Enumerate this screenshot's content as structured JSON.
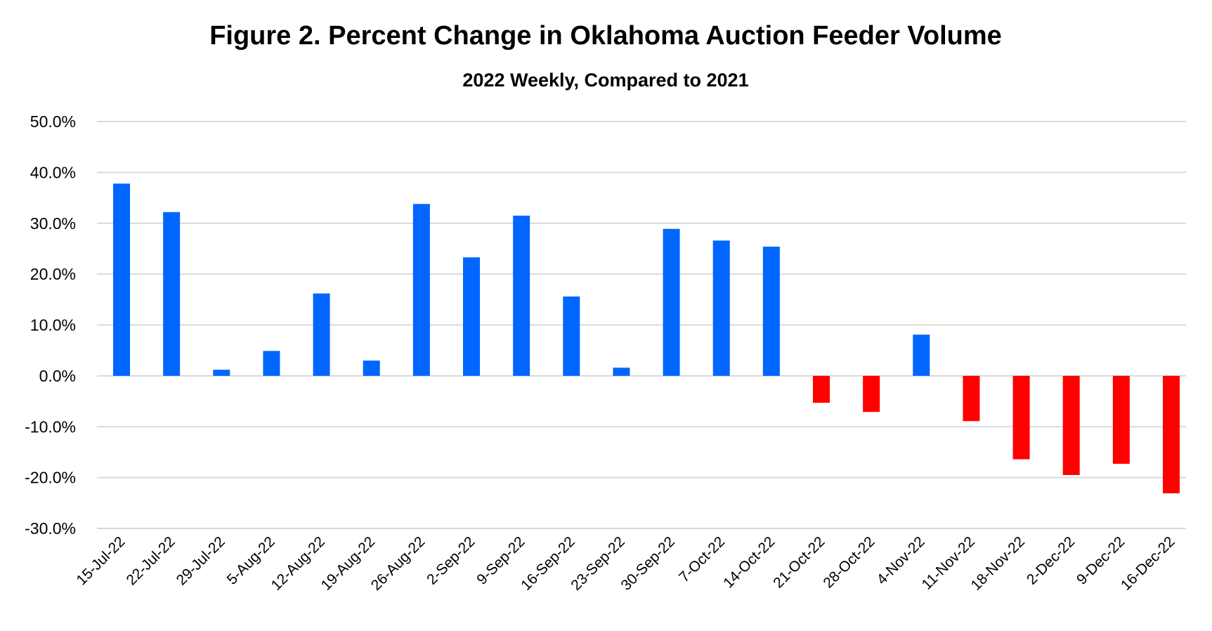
{
  "chart_data": {
    "type": "bar",
    "title": "Figure 2.  Percent Change in Oklahoma Auction Feeder Volume",
    "subtitle": "2022 Weekly, Compared to 2021",
    "xlabel": "",
    "ylabel": "",
    "ylim": [
      -30,
      50
    ],
    "yticks": [
      50,
      40,
      30,
      20,
      10,
      0,
      -10,
      -20,
      -30
    ],
    "ytick_labels": [
      "50.0%",
      "40.0%",
      "30.0%",
      "20.0%",
      "10.0%",
      "0.0%",
      "-10.0%",
      "-20.0%",
      "-30.0%"
    ],
    "grid": true,
    "legend": "none",
    "colors": {
      "positive": "#0066ff",
      "negative": "#ff0000",
      "grid": "#d9d9d9"
    },
    "categories": [
      "15-Jul-22",
      "22-Jul-22",
      "29-Jul-22",
      "5-Aug-22",
      "12-Aug-22",
      "19-Aug-22",
      "26-Aug-22",
      "2-Sep-22",
      "9-Sep-22",
      "16-Sep-22",
      "23-Sep-22",
      "30-Sep-22",
      "7-Oct-22",
      "14-Oct-22",
      "21-Oct-22",
      "28-Oct-22",
      "4-Nov-22",
      "11-Nov-22",
      "18-Nov-22",
      "2-Dec-22",
      "9-Dec-22",
      "16-Dec-22"
    ],
    "values": [
      37.8,
      32.2,
      1.2,
      4.9,
      16.2,
      3.0,
      33.8,
      23.3,
      31.5,
      15.6,
      1.6,
      28.9,
      26.6,
      25.4,
      -5.3,
      -7.1,
      8.1,
      -8.9,
      -16.4,
      -19.5,
      -17.3,
      -23.1
    ]
  }
}
